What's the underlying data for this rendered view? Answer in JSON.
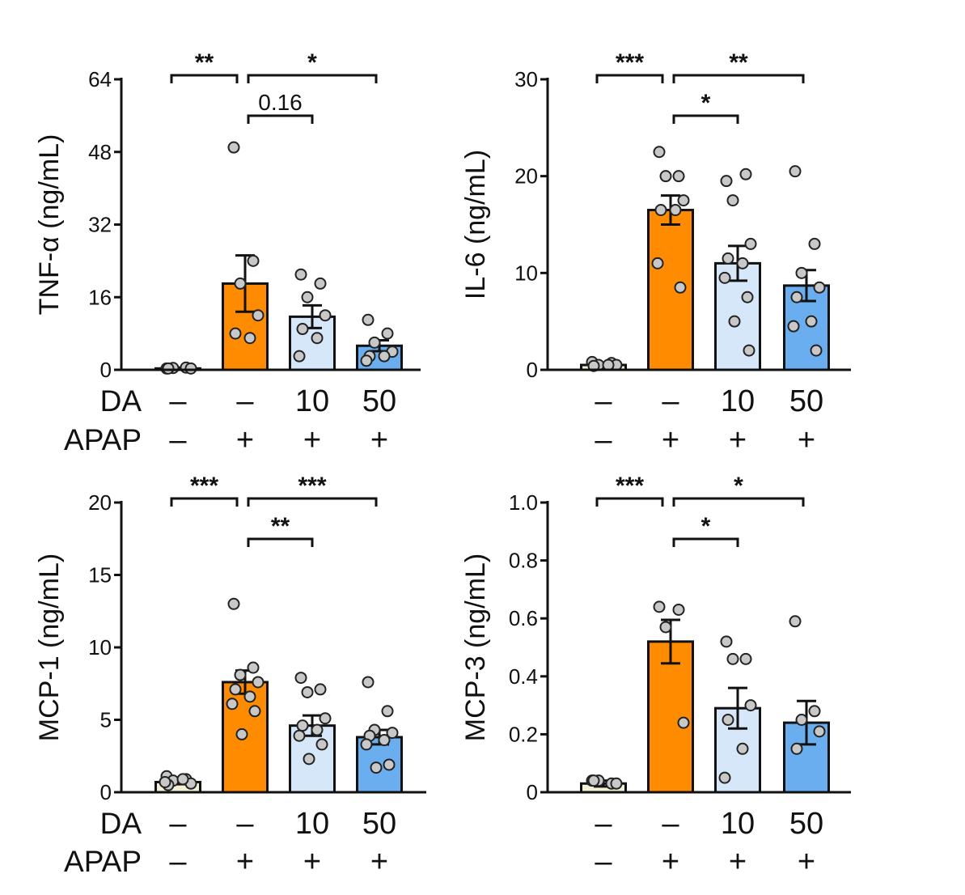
{
  "conditions": {
    "da_label": "DA",
    "apap_label": "APAP",
    "da_values": [
      "–",
      "–",
      "10",
      "50"
    ],
    "apap_values": [
      "–",
      "+",
      "+",
      "+"
    ]
  },
  "colors": {
    "control": "#f3f0d6",
    "apap": "#ff8c00",
    "da10": "#d6e7fa",
    "da50": "#6aaef0",
    "dot": "#c8c8c8",
    "axis": "#111111"
  },
  "chart_data": [
    {
      "id": "tnf",
      "type": "bar",
      "ylabel": "TNF-α (ng/mL)",
      "ylim": [
        0,
        64
      ],
      "yticks": [
        0,
        16,
        32,
        48,
        64
      ],
      "categories": [
        "Control",
        "APAP",
        "APAP+DA10",
        "APAP+DA50"
      ],
      "values": [
        0.3,
        19,
        11.7,
        5.3
      ],
      "sem": [
        0.2,
        6.2,
        2.5,
        1.2
      ],
      "points": [
        [
          0.3,
          0.5,
          0.4,
          0.3,
          0.3
        ],
        [
          49,
          24,
          19,
          12,
          8,
          7
        ],
        [
          21,
          19,
          16,
          12,
          9,
          7,
          3
        ],
        [
          11,
          8,
          6,
          4,
          3,
          3,
          2
        ]
      ],
      "sig": [
        {
          "from": 0,
          "to": 1,
          "level": 0,
          "label": "**",
          "stars": true
        },
        {
          "from": 1,
          "to": 3,
          "level": 0,
          "label": "*",
          "stars": true
        },
        {
          "from": 1,
          "to": 2,
          "level": 1,
          "label": "0.16",
          "stars": false
        }
      ]
    },
    {
      "id": "il6",
      "type": "bar",
      "ylabel": "IL-6 (ng/mL)",
      "ylim": [
        0,
        30
      ],
      "yticks": [
        0,
        10,
        20,
        30
      ],
      "categories": [
        "Control",
        "APAP",
        "APAP+DA10",
        "APAP+DA50"
      ],
      "values": [
        0.5,
        16.5,
        11,
        8.7
      ],
      "sem": [
        0.2,
        1.5,
        1.8,
        1.6
      ],
      "points": [
        [
          0.8,
          0.7,
          0.5,
          0.5,
          0.4,
          0.5
        ],
        [
          22.5,
          20,
          20,
          17.5,
          16.5,
          16.5,
          11,
          8.5
        ],
        [
          19.5,
          20.2,
          17.5,
          13,
          11.5,
          11,
          9.5,
          7.5,
          5,
          2
        ],
        [
          20.5,
          13,
          10,
          8.5,
          7.5,
          5,
          4.5,
          2
        ]
      ],
      "sig": [
        {
          "from": 0,
          "to": 1,
          "level": 0,
          "label": "***",
          "stars": true
        },
        {
          "from": 1,
          "to": 3,
          "level": 0,
          "label": "**",
          "stars": true
        },
        {
          "from": 1,
          "to": 2,
          "level": 1,
          "label": "*",
          "stars": true
        }
      ]
    },
    {
      "id": "mcp1",
      "type": "bar",
      "ylabel": "MCP-1 (ng/mL)",
      "ylim": [
        0,
        20
      ],
      "yticks": [
        0,
        5,
        10,
        15,
        20
      ],
      "categories": [
        "Control",
        "APAP",
        "APAP+DA10",
        "APAP+DA50"
      ],
      "values": [
        0.7,
        7.6,
        4.6,
        3.8
      ],
      "sem": [
        0.15,
        0.8,
        0.7,
        0.5
      ],
      "points": [
        [
          1.1,
          0.9,
          0.8,
          0.6,
          0.5,
          0.9,
          0.7
        ],
        [
          13,
          8.6,
          8.1,
          7.6,
          7.1,
          6.6,
          6.1,
          5.6,
          4.0
        ],
        [
          7.9,
          7.1,
          6.9,
          5.1,
          4.6,
          4.3,
          3.9,
          3.3,
          2.3
        ],
        [
          7.6,
          5.6,
          4.3,
          4.1,
          3.9,
          3.6,
          3.3,
          1.9,
          1.7
        ]
      ],
      "sig": [
        {
          "from": 0,
          "to": 1,
          "level": 0,
          "label": "***",
          "stars": true
        },
        {
          "from": 1,
          "to": 3,
          "level": 0,
          "label": "***",
          "stars": true
        },
        {
          "from": 1,
          "to": 2,
          "level": 1,
          "label": "**",
          "stars": true
        }
      ]
    },
    {
      "id": "mcp3",
      "type": "bar",
      "ylabel": "MCP-3 (ng/mL)",
      "ylim": [
        0,
        1.0
      ],
      "yticks": [
        0,
        0.2,
        0.4,
        0.6,
        0.8,
        1.0
      ],
      "ytick_labels": [
        "0",
        "0.2",
        "0.4",
        "0.6",
        "0.8",
        "1.0"
      ],
      "categories": [
        "Control",
        "APAP",
        "APAP+DA10",
        "APAP+DA50"
      ],
      "values": [
        0.03,
        0.52,
        0.29,
        0.24
      ],
      "sem": [
        0.01,
        0.075,
        0.07,
        0.075
      ],
      "points": [
        [
          0.04,
          0.03,
          0.04,
          0.03,
          0.04
        ],
        [
          0.64,
          0.63,
          0.57,
          0.24
        ],
        [
          0.52,
          0.46,
          0.46,
          0.3,
          0.25,
          0.15,
          0.05
        ],
        [
          0.59,
          0.28,
          0.25,
          0.21,
          0.15
        ]
      ],
      "sig": [
        {
          "from": 0,
          "to": 1,
          "level": 0,
          "label": "***",
          "stars": true
        },
        {
          "from": 1,
          "to": 3,
          "level": 0,
          "label": "*",
          "stars": true
        },
        {
          "from": 1,
          "to": 2,
          "level": 1,
          "label": "*",
          "stars": true
        }
      ]
    }
  ]
}
